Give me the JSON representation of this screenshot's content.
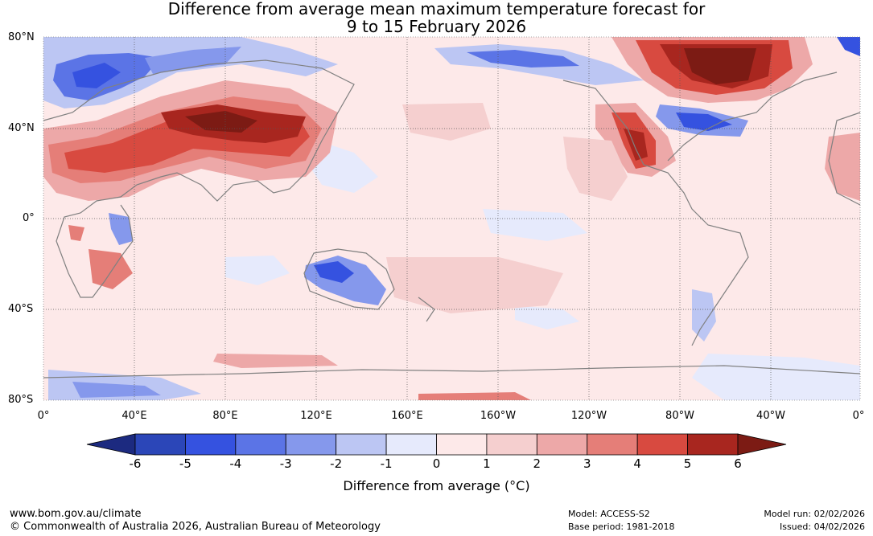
{
  "title": {
    "line1": "Difference from average mean maximum temperature forecast for",
    "line2": "9 to 15 February 2026"
  },
  "map": {
    "lat_labels": [
      "80°N",
      "40°N",
      "0°",
      "40°S",
      "80°S"
    ],
    "lon_labels": [
      "0°",
      "40°E",
      "80°E",
      "120°E",
      "160°E",
      "160°W",
      "120°W",
      "80°W",
      "40°W",
      "0°"
    ]
  },
  "colorbar": {
    "ticks": [
      "-6",
      "-5",
      "-4",
      "-3",
      "-2",
      "-1",
      "0",
      "1",
      "2",
      "3",
      "4",
      "5",
      "6"
    ],
    "colors": [
      "#1c2a80",
      "#2b46b8",
      "#3552e0",
      "#5b74e6",
      "#8598ec",
      "#bcc6f3",
      "#e6eafc",
      "#fde9e9",
      "#f5cfcf",
      "#eda8a8",
      "#e57e78",
      "#d84a40",
      "#a8261f",
      "#7c1b14"
    ],
    "label": "Difference from average (°C)"
  },
  "footer": {
    "url": "www.bom.gov.au/climate",
    "copyright": "© Commonwealth of Australia 2026, Australian Bureau of Meteorology",
    "model": "Model: ACCESS-S2",
    "base_period": "Base period: 1981-2018",
    "model_run": "Model run: 02/02/2026",
    "issued": "Issued: 04/02/2026"
  }
}
